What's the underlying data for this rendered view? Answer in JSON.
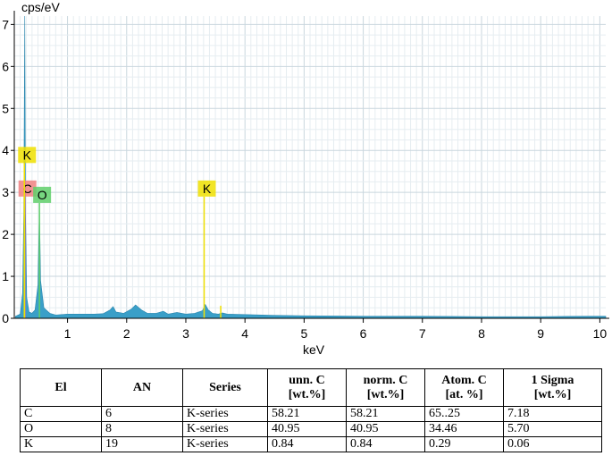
{
  "chart_data": {
    "type": "area",
    "ylabel": "cps/eV",
    "xlabel": "keV",
    "xlim": [
      0.1,
      10.1
    ],
    "ylim": [
      0,
      7.2
    ],
    "x_ticks": [
      1,
      2,
      3,
      4,
      5,
      6,
      7,
      8,
      9,
      10
    ],
    "y_ticks": [
      0,
      1,
      2,
      3,
      4,
      5,
      6,
      7
    ],
    "grid": true,
    "fill_color": "#3a9fc8",
    "spectrum": [
      [
        0.12,
        0.05
      ],
      [
        0.2,
        0.1
      ],
      [
        0.24,
        0.6
      ],
      [
        0.26,
        2.5
      ],
      [
        0.277,
        7.2
      ],
      [
        0.29,
        2.5
      ],
      [
        0.31,
        0.5
      ],
      [
        0.35,
        0.15
      ],
      [
        0.4,
        0.12
      ],
      [
        0.45,
        0.2
      ],
      [
        0.5,
        0.8
      ],
      [
        0.525,
        2.7
      ],
      [
        0.545,
        0.9
      ],
      [
        0.6,
        0.25
      ],
      [
        0.7,
        0.12
      ],
      [
        0.8,
        0.08
      ],
      [
        1.0,
        0.1
      ],
      [
        1.2,
        0.1
      ],
      [
        1.45,
        0.1
      ],
      [
        1.6,
        0.11
      ],
      [
        1.72,
        0.2
      ],
      [
        1.77,
        0.28
      ],
      [
        1.82,
        0.15
      ],
      [
        1.95,
        0.12
      ],
      [
        2.08,
        0.22
      ],
      [
        2.15,
        0.32
      ],
      [
        2.25,
        0.2
      ],
      [
        2.35,
        0.12
      ],
      [
        2.5,
        0.12
      ],
      [
        2.62,
        0.17
      ],
      [
        2.7,
        0.1
      ],
      [
        2.85,
        0.14
      ],
      [
        3.0,
        0.1
      ],
      [
        3.15,
        0.12
      ],
      [
        3.28,
        0.18
      ],
      [
        3.33,
        0.33
      ],
      [
        3.38,
        0.2
      ],
      [
        3.45,
        0.12
      ],
      [
        3.55,
        0.1
      ],
      [
        3.62,
        0.13
      ],
      [
        3.7,
        0.1
      ],
      [
        4.0,
        0.09
      ],
      [
        4.5,
        0.07
      ],
      [
        5.0,
        0.06
      ],
      [
        6.0,
        0.05
      ],
      [
        7.0,
        0.05
      ],
      [
        8.0,
        0.04
      ],
      [
        9.0,
        0.04
      ],
      [
        9.8,
        0.05
      ],
      [
        10.1,
        0.05
      ]
    ],
    "element_lines": [
      {
        "label": "C",
        "x": 0.277,
        "y": 2.9,
        "color": "#f08080"
      },
      {
        "label": "O",
        "x": 0.525,
        "y": 2.75,
        "color": "#5fcf6a"
      },
      {
        "label": "K",
        "x": 0.27,
        "y": 3.7,
        "color": "#f0e000"
      },
      {
        "label": "K",
        "x": 3.31,
        "y": 2.9,
        "color": "#f0e000"
      },
      {
        "label": "",
        "x": 3.59,
        "y": 0.3,
        "color": "#f0e000"
      }
    ]
  },
  "table": {
    "headers": [
      [
        "El",
        ""
      ],
      [
        "AN",
        ""
      ],
      [
        "Series",
        ""
      ],
      [
        "unn. C",
        "[wt.%]"
      ],
      [
        "norm. C",
        "[wt.%]"
      ],
      [
        "Atom. C",
        "[at. %]"
      ],
      [
        "1 Sigma",
        "[wt.%]"
      ]
    ],
    "rows": [
      [
        "C",
        "6",
        "K-series",
        "58.21",
        "58.21",
        "65..25",
        "7.18"
      ],
      [
        "O",
        "8",
        "K-series",
        "40.95",
        "40.95",
        "34.46",
        "5.70"
      ],
      [
        "K",
        "19",
        "K-series",
        "0.84",
        "0.84",
        "0.29",
        "0.06"
      ]
    ]
  }
}
